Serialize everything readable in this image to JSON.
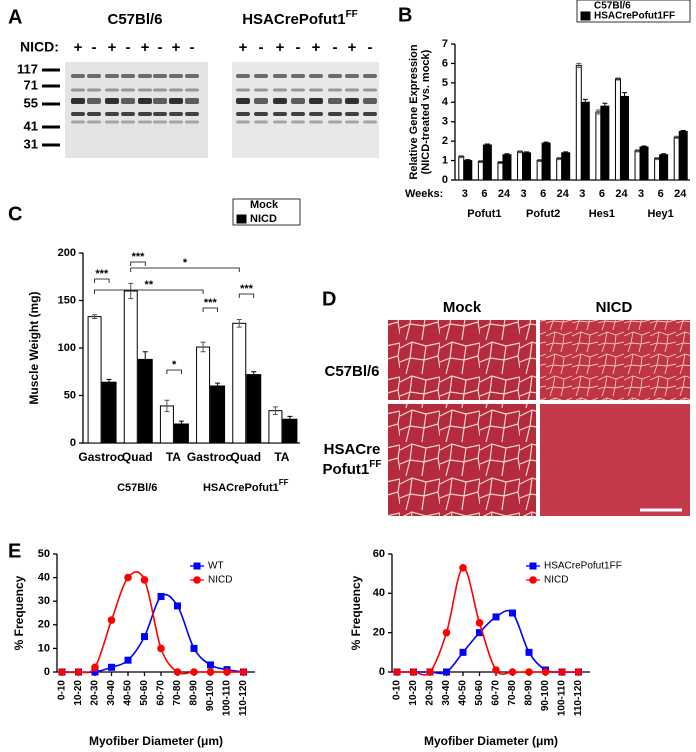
{
  "blot": {
    "panel_label": "A",
    "groups": [
      "C57Bl/6",
      "HSACrePofut1"
    ],
    "superscript": "FF",
    "row_label": "NICD:",
    "treatments": [
      [
        "+",
        "-",
        "+",
        "-",
        "+",
        "-",
        "+",
        "-"
      ],
      [
        "+",
        "-",
        "+",
        "-",
        "+",
        "-",
        "+",
        "-"
      ]
    ],
    "markers": [
      117,
      71,
      55,
      41,
      31
    ]
  },
  "histology": {
    "panel_label": "D",
    "columns": [
      "Mock",
      "NICD"
    ],
    "rows": [
      [
        "C57Bl/6"
      ],
      [
        "HSACre",
        "Pofut1"
      ]
    ],
    "row_superscript": "FF"
  },
  "chart_data": [
    {
      "type": "bar",
      "panel_label": "B",
      "ylabel": [
        "Relative Gene Expression",
        "(NICD-treated vs. mock)"
      ],
      "x_prefix": "Weeks:",
      "categories": [
        "3",
        "6",
        "24",
        "3",
        "6",
        "24",
        "3",
        "6",
        "24",
        "3",
        "6",
        "24"
      ],
      "groups": [
        "Pofut1",
        "Pofut2",
        "Hes1",
        "Hey1"
      ],
      "ylim": [
        0,
        7
      ],
      "yticks": [
        0,
        1,
        2,
        3,
        4,
        5,
        6,
        7
      ],
      "legend": "top-right",
      "series": [
        {
          "name": "C57Bl/6",
          "color": "#ffffff",
          "values": [
            1.2,
            0.95,
            0.9,
            1.45,
            1.0,
            1.1,
            5.9,
            3.5,
            5.2,
            1.5,
            1.1,
            2.2
          ],
          "errors": [
            0.05,
            0.05,
            0.05,
            0.05,
            0.05,
            0.05,
            0.1,
            0.1,
            0.05,
            0.05,
            0.05,
            0.05
          ]
        },
        {
          "name": "HSACrePofut1FF",
          "color": "#000000",
          "values": [
            1.0,
            1.8,
            1.3,
            1.4,
            1.9,
            1.4,
            4.0,
            3.8,
            4.3,
            1.7,
            1.3,
            2.5
          ],
          "errors": [
            0.05,
            0.05,
            0.05,
            0.05,
            0.05,
            0.05,
            0.15,
            0.15,
            0.2,
            0.05,
            0.05,
            0.05
          ]
        }
      ]
    },
    {
      "type": "bar",
      "panel_label": "C",
      "ylabel": "Muscle Weight (mg)",
      "categories": [
        "Gastroc",
        "Quad",
        "TA",
        "Gastroc",
        "Quad",
        "TA"
      ],
      "groups": [
        "C57Bl/6",
        "HSACrePofut1"
      ],
      "group_superscript": "FF",
      "ylim": [
        0,
        200
      ],
      "yticks": [
        0,
        50,
        100,
        150,
        200
      ],
      "legend": "top-right",
      "series": [
        {
          "name": "Mock",
          "color": "#ffffff",
          "values": [
            133,
            160,
            39,
            101,
            126,
            34
          ],
          "errors": [
            2,
            8,
            6,
            5,
            4,
            4
          ]
        },
        {
          "name": "NICD",
          "color": "#000000",
          "values": [
            64,
            88,
            20,
            60,
            72,
            25
          ],
          "errors": [
            3,
            8,
            3,
            3,
            3,
            3
          ]
        }
      ],
      "annotations": [
        "***",
        "***",
        "*",
        "**",
        "*",
        "***",
        "***"
      ]
    },
    {
      "type": "line",
      "panel_label": "E",
      "ylabel": "% Frequency",
      "xlabel": "Myofiber Diameter (μm)",
      "categories": [
        "0-10",
        "10-20",
        "20-30",
        "30-40",
        "40-50",
        "50-60",
        "60-70",
        "70-80",
        "80-90",
        "90-100",
        "100-110",
        "110-120"
      ],
      "ylim": [
        0,
        50
      ],
      "yticks": [
        0,
        10,
        20,
        30,
        40,
        50
      ],
      "legend": "top-right",
      "series": [
        {
          "name": "WT",
          "color": "#0000ff",
          "marker": "square",
          "values": [
            0,
            0,
            0,
            2,
            5,
            15,
            32,
            28,
            10,
            3,
            1,
            0
          ]
        },
        {
          "name": "NICD",
          "color": "#ff0000",
          "marker": "circle",
          "values": [
            0,
            0,
            2,
            22,
            40,
            39,
            10,
            0,
            0,
            0,
            0,
            0
          ]
        }
      ]
    },
    {
      "type": "line",
      "ylabel": "% Frequency",
      "xlabel": "Myofiber Diameter (μm)",
      "categories": [
        "0-10",
        "10-20",
        "20-30",
        "30-40",
        "40-50",
        "50-60",
        "60-70",
        "70-80",
        "80-90",
        "90-100",
        "100-110",
        "110-120"
      ],
      "ylim": [
        0,
        60
      ],
      "yticks": [
        0,
        20,
        40,
        60
      ],
      "legend": "top-right",
      "series": [
        {
          "name": "HSACrePofut1FF",
          "color": "#0000ff",
          "marker": "square",
          "values": [
            0,
            0,
            0,
            0,
            10,
            20,
            28,
            30,
            10,
            1,
            0,
            0
          ]
        },
        {
          "name": "NICD",
          "color": "#ff0000",
          "marker": "circle",
          "values": [
            0,
            0,
            0,
            20,
            53,
            25,
            1,
            0,
            0,
            0,
            0,
            0
          ]
        }
      ]
    }
  ]
}
